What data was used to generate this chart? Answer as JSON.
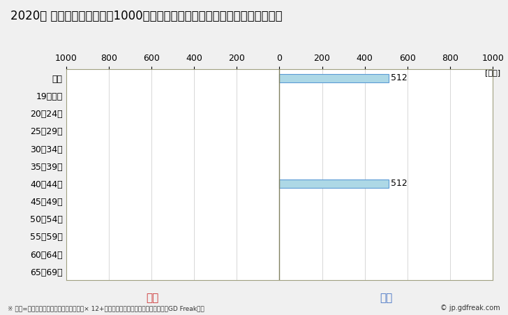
{
  "title": "2020年 民間企業（従業者数1000人以上）フルタイム労働者の男女別平均年収",
  "unit_label": "[万円]",
  "categories": [
    "全体",
    "19歳以下",
    "20〜24歳",
    "25〜29歳",
    "30〜34歳",
    "35〜39歳",
    "40〜44歳",
    "45〜49歳",
    "50〜54歳",
    "55〜59歳",
    "60〜64歳",
    "65〜69歳"
  ],
  "male_values": [
    512,
    0,
    0,
    0,
    0,
    0,
    512,
    0,
    0,
    0,
    0,
    0
  ],
  "female_values": [
    0,
    0,
    0,
    0,
    0,
    0,
    0,
    0,
    0,
    0,
    0,
    0
  ],
  "male_color": "#add8e6",
  "female_color": "#ffb6c1",
  "male_label": "男性",
  "female_label": "女性",
  "male_label_color": "#4472c4",
  "female_label_color": "#cc3333",
  "xlim": 1000,
  "bar_border_color": "#5b9bd5",
  "background_color": "#f0f0f0",
  "plot_background": "#ffffff",
  "footnote": "※ 年収=「きまって支給する現金給与額」× 12+「年間賞与その他特別給与額」としてGD Freak推計",
  "copyright": "© jp.gdfreak.com",
  "title_fontsize": 12,
  "label_fontsize": 9,
  "tick_fontsize": 9,
  "center_line_color": "#808060",
  "grid_color": "#c8c8c8",
  "border_color": "#a0a080"
}
